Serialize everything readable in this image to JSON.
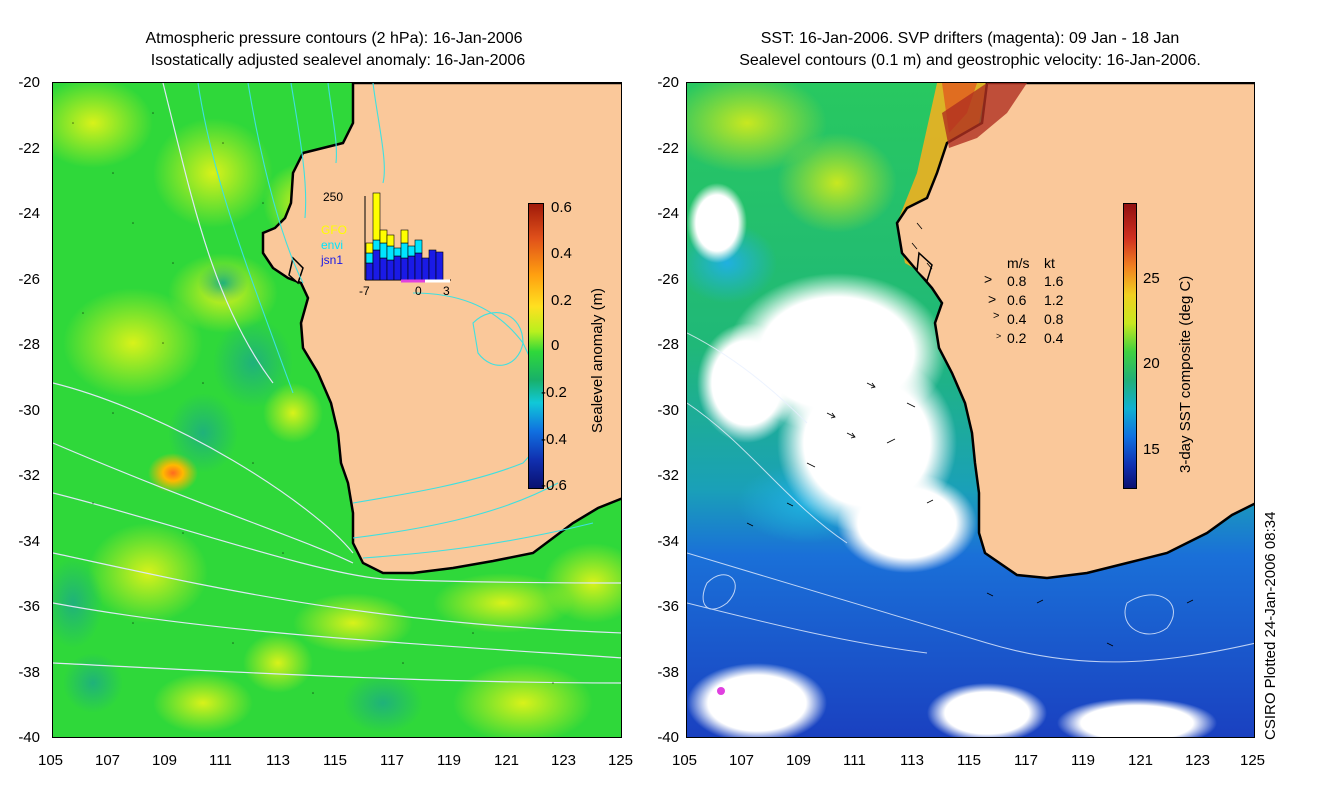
{
  "left": {
    "title_line1": "Atmospheric pressure contours (2 hPa): 16-Jan-2006",
    "title_line2": "Isostatically adjusted sealevel anomaly: 16-Jan-2006",
    "colorbar_label": "Sealevel anomaly (m)",
    "colorbar_ticks": [
      "0.6",
      "0.4",
      "0.2",
      "0",
      "-0.2",
      "-0.4",
      "-0.6"
    ],
    "inset": {
      "ymax_label": "250",
      "legend": [
        {
          "label": "GFO",
          "color": "#ffff00"
        },
        {
          "label": "envi",
          "color": "#00e5ff"
        },
        {
          "label": "jsn1",
          "color": "#1a1ae6"
        }
      ],
      "x_ticks": [
        "-7",
        "0",
        "3"
      ]
    }
  },
  "right": {
    "title_line1": "SST: 16-Jan-2006. SVP drifters (magenta): 09 Jan - 18 Jan",
    "title_line2": "Sealevel contours (0.1 m) and geostrophic velocity: 16-Jan-2006.",
    "colorbar_label": "3-day SST composite (deg C)",
    "colorbar_ticks": [
      "25",
      "20",
      "15"
    ],
    "velocity_legend": {
      "header_ms": "m/s",
      "header_kt": "kt",
      "rows": [
        {
          "ms": "0.8",
          "kt": "1.6"
        },
        {
          "ms": "0.6",
          "kt": "1.2"
        },
        {
          "ms": "0.4",
          "kt": "0.8"
        },
        {
          "ms": "0.2",
          "kt": "0.4"
        }
      ]
    }
  },
  "axes": {
    "y_ticks": [
      "-20",
      "-22",
      "-24",
      "-26",
      "-28",
      "-30",
      "-32",
      "-34",
      "-36",
      "-38",
      "-40"
    ],
    "x_ticks": [
      "105",
      "107",
      "109",
      "111",
      "113",
      "115",
      "117",
      "119",
      "121",
      "123",
      "125"
    ]
  },
  "footer": "CSIRO Plotted 24-Jan-2006 08:34",
  "colors": {
    "land": "#fac89a",
    "ocean_green": "#2fd83a",
    "ocean_yellow": "#b8f01e",
    "sst_blue": "#1e5fd6",
    "sst_green": "#22c24a",
    "drifter": "#e040e0"
  }
}
